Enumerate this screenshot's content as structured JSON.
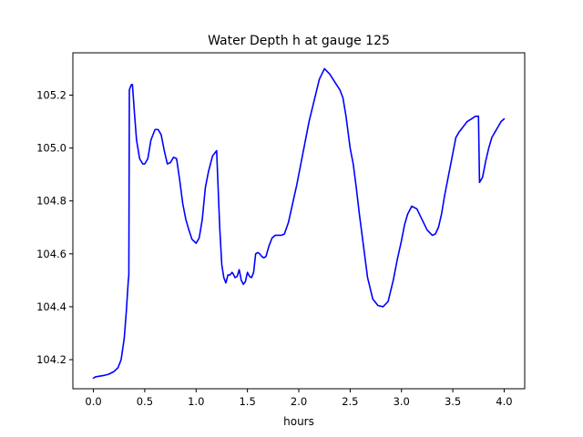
{
  "chart_data": {
    "type": "line",
    "title": "Water Depth h at gauge 125",
    "xlabel": "hours",
    "ylabel": "",
    "xlim": [
      -0.2,
      4.2
    ],
    "ylim": [
      104.09,
      105.36
    ],
    "xticks": [
      0.0,
      0.5,
      1.0,
      1.5,
      2.0,
      2.5,
      3.0,
      3.5,
      4.0
    ],
    "xtick_labels": [
      "0.0",
      "0.5",
      "1.0",
      "1.5",
      "2.0",
      "2.5",
      "3.0",
      "3.5",
      "4.0"
    ],
    "yticks": [
      104.2,
      104.4,
      104.6,
      104.8,
      105.0,
      105.2
    ],
    "ytick_labels": [
      "104.2",
      "104.4",
      "104.6",
      "104.8",
      "105.0",
      "105.2"
    ],
    "grid": false,
    "line_color": "#0000ff",
    "series": [
      {
        "x": [
          0.0,
          0.02,
          0.1,
          0.15,
          0.2,
          0.24,
          0.27,
          0.3,
          0.32,
          0.34,
          0.345,
          0.35,
          0.37,
          0.38,
          0.4,
          0.42,
          0.45,
          0.48,
          0.5,
          0.53,
          0.56,
          0.6,
          0.63,
          0.66,
          0.69,
          0.72,
          0.75,
          0.78,
          0.81,
          0.84,
          0.87,
          0.9,
          0.93,
          0.96,
          1.0,
          1.03,
          1.06,
          1.09,
          1.12,
          1.16,
          1.2,
          1.23,
          1.25,
          1.27,
          1.29,
          1.31,
          1.33,
          1.34,
          1.35,
          1.36,
          1.38,
          1.4,
          1.42,
          1.44,
          1.46,
          1.48,
          1.5,
          1.52,
          1.54,
          1.56,
          1.58,
          1.6,
          1.62,
          1.64,
          1.66,
          1.68,
          1.71,
          1.74,
          1.77,
          1.8,
          1.83,
          1.86,
          1.9,
          1.94,
          1.98,
          2.0,
          2.03,
          2.06,
          2.1,
          2.15,
          2.2,
          2.25,
          2.3,
          2.35,
          2.4,
          2.43,
          2.46,
          2.48,
          2.5,
          2.53,
          2.56,
          2.59,
          2.63,
          2.67,
          2.72,
          2.77,
          2.82,
          2.87,
          2.92,
          2.96,
          3.0,
          3.03,
          3.06,
          3.1,
          3.15,
          3.2,
          3.25,
          3.3,
          3.33,
          3.36,
          3.39,
          3.42,
          3.46,
          3.5,
          3.53,
          3.56,
          3.6,
          3.64,
          3.68,
          3.72,
          3.75,
          3.76,
          3.79,
          3.82,
          3.85,
          3.88,
          3.91,
          3.94,
          3.97,
          4.0
        ],
        "y": [
          104.13,
          104.135,
          104.14,
          104.145,
          104.155,
          104.17,
          104.2,
          104.28,
          104.38,
          104.5,
          104.52,
          105.22,
          105.24,
          105.24,
          105.13,
          105.03,
          104.96,
          104.94,
          104.94,
          104.96,
          105.03,
          105.07,
          105.07,
          105.05,
          104.99,
          104.94,
          104.945,
          104.965,
          104.96,
          104.88,
          104.79,
          104.73,
          104.69,
          104.655,
          104.64,
          104.66,
          104.73,
          104.85,
          104.91,
          104.97,
          104.99,
          104.7,
          104.56,
          104.51,
          104.49,
          104.52,
          104.52,
          104.525,
          104.53,
          104.525,
          104.51,
          104.515,
          104.54,
          104.5,
          104.485,
          104.495,
          104.53,
          104.515,
          104.51,
          104.53,
          104.6,
          104.605,
          104.6,
          104.59,
          104.585,
          104.59,
          104.63,
          104.66,
          104.67,
          104.67,
          104.67,
          104.675,
          104.72,
          104.79,
          104.86,
          104.9,
          104.96,
          105.02,
          105.1,
          105.18,
          105.26,
          105.3,
          105.28,
          105.25,
          105.22,
          105.19,
          105.12,
          105.06,
          105.0,
          104.94,
          104.85,
          104.75,
          104.63,
          104.51,
          104.43,
          104.405,
          104.4,
          104.42,
          104.5,
          104.58,
          104.65,
          104.71,
          104.75,
          104.78,
          104.77,
          104.73,
          104.69,
          104.67,
          104.675,
          104.7,
          104.75,
          104.82,
          104.9,
          104.98,
          105.04,
          105.06,
          105.08,
          105.1,
          105.11,
          105.12,
          105.12,
          104.87,
          104.89,
          104.95,
          105.0,
          105.04,
          105.06,
          105.08,
          105.1,
          105.11
        ]
      }
    ]
  }
}
